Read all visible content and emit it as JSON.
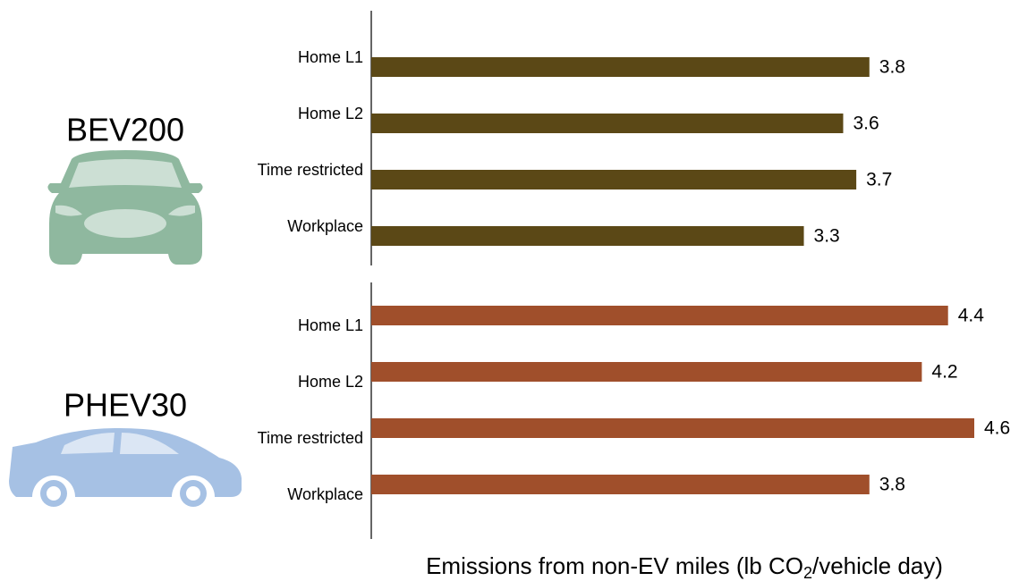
{
  "chart_data": [
    {
      "type": "bar",
      "orientation": "horizontal",
      "title": "BEV200",
      "categories": [
        "Home L1",
        "Home L2",
        "Time restricted",
        "Workplace"
      ],
      "values": [
        3.8,
        3.6,
        3.7,
        3.3
      ],
      "color": "#5b4816",
      "xlim": [
        0,
        4.6
      ]
    },
    {
      "type": "bar",
      "orientation": "horizontal",
      "title": "PHEV30",
      "categories": [
        "Home L1",
        "Home L2",
        "Time restricted",
        "Workplace"
      ],
      "values": [
        4.4,
        4.2,
        4.6,
        3.8
      ],
      "color": "#a04f2b",
      "xlim": [
        0,
        4.6
      ]
    }
  ],
  "axis_label": [
    "Emissions from non-EV miles (lb CO",
    "2",
    "/vehicle day)"
  ]
}
